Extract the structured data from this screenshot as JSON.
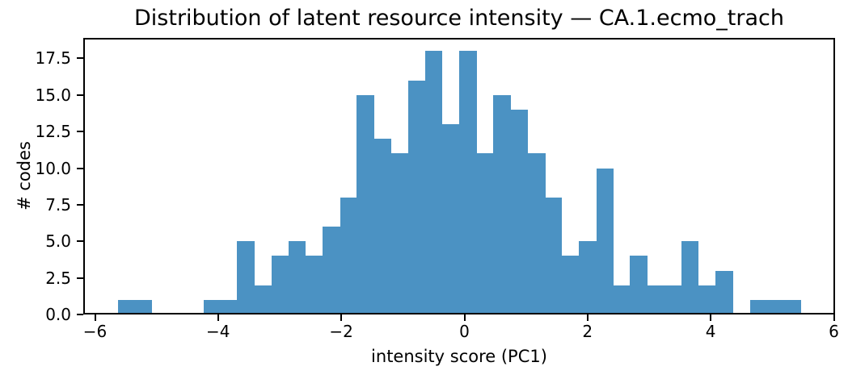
{
  "title": "Distribution of latent resource intensity — CA.1.ecmo_trach",
  "colors": {
    "bar": "#4b92c3",
    "axis": "#000000",
    "text": "#000000",
    "background": "#ffffff"
  },
  "chart_data": {
    "type": "bar",
    "subtype": "histogram",
    "title": "Distribution of latent resource intensity — CA.1.ecmo_trach",
    "xlabel": "intensity score (PC1)",
    "ylabel": "# codes",
    "bin_start": -5.63,
    "bin_width": 0.2775,
    "bin_edges": [
      -5.63,
      -5.35,
      -5.08,
      -4.8,
      -4.52,
      -4.24,
      -3.97,
      -3.69,
      -3.41,
      -3.13,
      -2.86,
      -2.58,
      -2.3,
      -2.02,
      -1.75,
      -1.47,
      -1.19,
      -0.91,
      -0.64,
      -0.36,
      -0.08,
      0.2,
      0.47,
      0.75,
      1.03,
      1.31,
      1.58,
      1.86,
      2.14,
      2.42,
      2.69,
      2.97,
      3.25,
      3.53,
      3.8,
      4.08,
      4.36,
      4.64,
      4.91,
      5.19,
      5.47
    ],
    "counts": [
      1,
      1,
      0,
      0,
      0,
      1,
      1,
      5,
      2,
      4,
      5,
      4,
      6,
      8,
      15,
      12,
      11,
      16,
      18,
      13,
      18,
      11,
      15,
      14,
      11,
      8,
      4,
      5,
      10,
      2,
      4,
      2,
      2,
      5,
      2,
      3,
      0,
      1,
      1,
      1
    ],
    "xlim": [
      -6.19,
      6.02
    ],
    "ylim": [
      0,
      18.9
    ],
    "xticks": [
      -6,
      -4,
      -2,
      0,
      2,
      4,
      6
    ],
    "xtick_labels": [
      "−6",
      "−4",
      "−2",
      "0",
      "2",
      "4",
      "6"
    ],
    "yticks": [
      0,
      2.5,
      5,
      7.5,
      10,
      12.5,
      15,
      17.5
    ],
    "ytick_labels": [
      "0.0",
      "2.5",
      "5.0",
      "7.5",
      "10.0",
      "12.5",
      "15.0",
      "17.5"
    ],
    "grid": false,
    "legend": null
  }
}
